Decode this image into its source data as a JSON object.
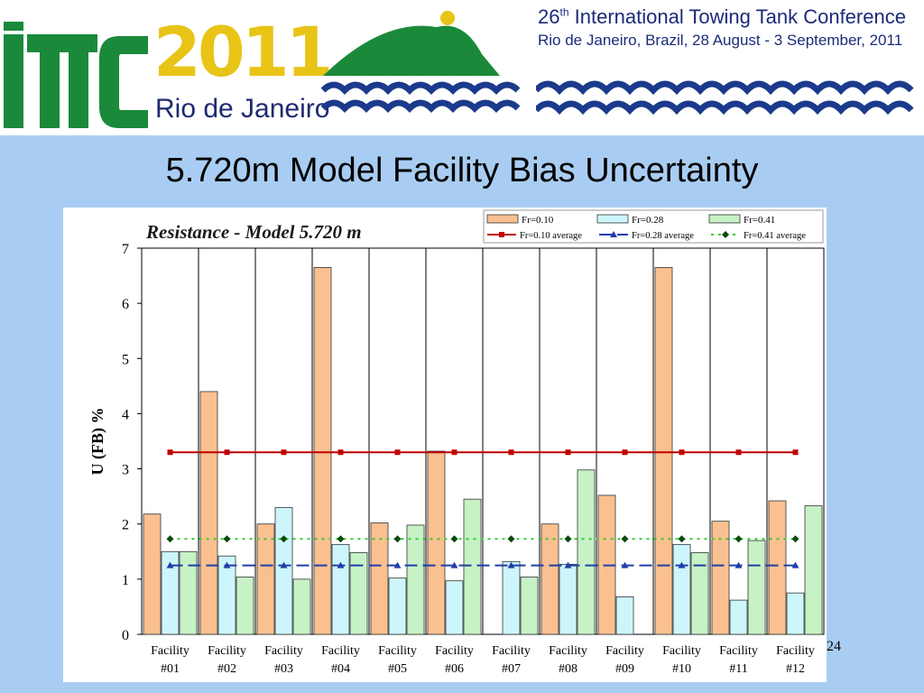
{
  "banner": {
    "logo_letters": "ITTC",
    "logo_year": "2011",
    "logo_city": "Rio de Janeiro",
    "conference_ordinal": "26",
    "conference_ordinal_suffix": "th",
    "conference_name": "International Towing Tank Conference",
    "conference_place_dates": "Rio de Janeiro, Brazil, 28 August - 3 September, 2011",
    "colors": {
      "green": "#1a8a3a",
      "yellow": "#e8c416",
      "blue": "#1b3a8c"
    }
  },
  "slide": {
    "title": "5.720m Model Facility Bias Uncertainty",
    "page_number": "24"
  },
  "chart_data": {
    "type": "bar",
    "title": "Resistance - Model 5.720 m",
    "xlabel": "",
    "ylabel": "U (FB) %",
    "ylim": [
      0,
      7
    ],
    "yticks": [
      "0",
      "1",
      "2",
      "3",
      "4",
      "5",
      "6",
      "7"
    ],
    "categories": [
      [
        "Facility",
        "#01"
      ],
      [
        "Facility",
        "#02"
      ],
      [
        "Facility",
        "#03"
      ],
      [
        "Facility",
        "#04"
      ],
      [
        "Facility",
        "#05"
      ],
      [
        "Facility",
        "#06"
      ],
      [
        "Facility",
        "#07"
      ],
      [
        "Facility",
        "#08"
      ],
      [
        "Facility",
        "#09"
      ],
      [
        "Facility",
        "#10"
      ],
      [
        "Facility",
        "#11"
      ],
      [
        "Facility",
        "#12"
      ]
    ],
    "series": [
      {
        "name": "Fr=0.10",
        "color": "#fac090",
        "values": [
          2.18,
          4.4,
          2.0,
          6.65,
          2.02,
          3.32,
          null,
          2.0,
          2.52,
          6.65,
          2.05,
          2.42
        ]
      },
      {
        "name": "Fr=0.28",
        "color": "#ccf6fb",
        "values": [
          1.5,
          1.42,
          2.3,
          1.63,
          1.02,
          0.97,
          1.32,
          1.27,
          0.68,
          1.63,
          0.62,
          0.75
        ]
      },
      {
        "name": "Fr=0.41",
        "color": "#c6f2c6",
        "values": [
          1.5,
          1.04,
          1.0,
          1.48,
          1.98,
          2.45,
          1.04,
          2.98,
          null,
          1.48,
          1.7,
          2.33
        ]
      }
    ],
    "averages": [
      {
        "name": "Fr=0.10 average",
        "value": 3.3,
        "color": "#c00000",
        "marker": "square",
        "dash": "solid"
      },
      {
        "name": "Fr=0.28 average",
        "value": 1.25,
        "color": "#1f3ea8",
        "marker": "triangle",
        "dash": "long-dash"
      },
      {
        "name": "Fr=0.41 average",
        "value": 1.73,
        "color": "#33cc33",
        "marker": "diamond",
        "dash": "dotted"
      }
    ],
    "grid": "vertical-separators",
    "legend": "top-right"
  }
}
